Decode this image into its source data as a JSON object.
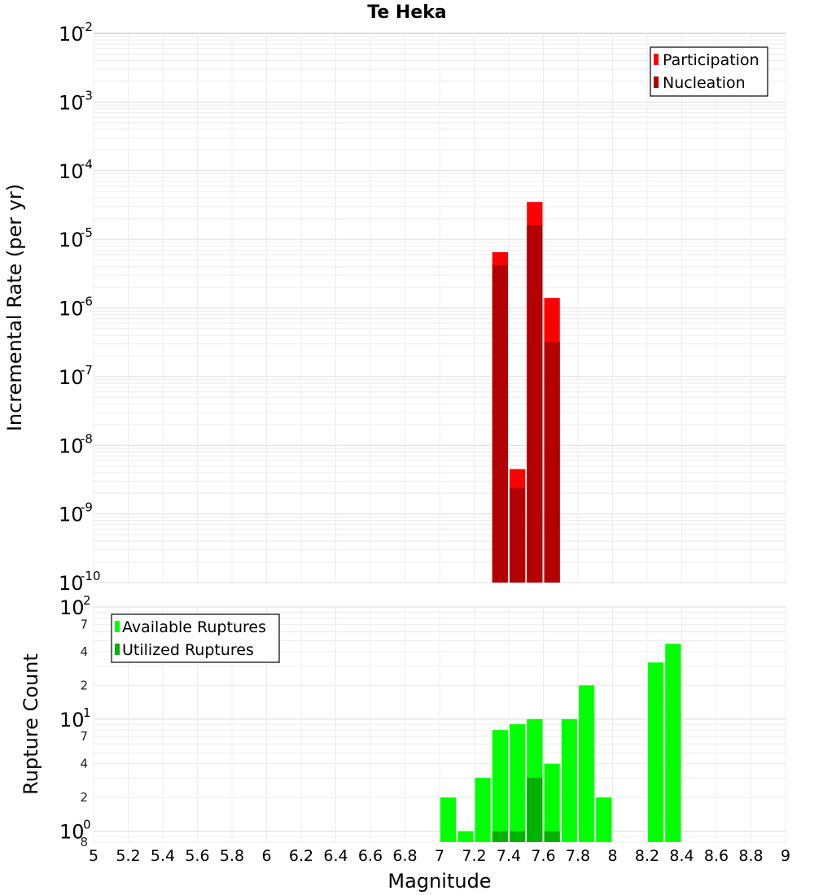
{
  "chart_data": [
    {
      "type": "bar",
      "title": "Te Heka",
      "xlabel": "",
      "ylabel": "Incremental Rate (per yr)",
      "yscale": "log",
      "xlim": [
        5,
        9
      ],
      "ylim": [
        1e-10,
        0.01
      ],
      "y_tick_exponents": [
        -2,
        -3,
        -4,
        -5,
        -6,
        -7,
        -8,
        -9,
        -10
      ],
      "y_tick_base": "10",
      "grid": true,
      "bar_width": 0.1,
      "legend_position": "top-right",
      "series": [
        {
          "name": "Participation",
          "color": "#ff0000",
          "x": [
            7.35,
            7.45,
            7.55,
            7.65
          ],
          "values": [
            6.5e-06,
            4.5e-09,
            3.5e-05,
            1.4e-06
          ]
        },
        {
          "name": "Nucleation",
          "color": "#b30000",
          "x": [
            7.35,
            7.45,
            7.55,
            7.65
          ],
          "values": [
            4.2e-06,
            2.4e-09,
            1.6e-05,
            3.2e-07
          ]
        }
      ]
    },
    {
      "type": "bar",
      "xlabel": "Magnitude",
      "ylabel": "Rupture Count",
      "yscale": "log",
      "xlim": [
        5,
        9
      ],
      "ylim": [
        0.8,
        100
      ],
      "x_ticks": [
        "5",
        "5.2",
        "5.4",
        "5.6",
        "5.8",
        "6",
        "6.2",
        "6.4",
        "6.6",
        "6.8",
        "7",
        "7.2",
        "7.4",
        "7.6",
        "7.8",
        "8",
        "8.2",
        "8.4",
        "8.6",
        "8.8",
        "9"
      ],
      "y_major_ticks": [
        {
          "base": "10",
          "exp": "2",
          "value": 100
        },
        {
          "base": "10",
          "exp": "1",
          "value": 10
        },
        {
          "base": "10",
          "exp": "0",
          "value": 1
        }
      ],
      "y_minor_ticks": [
        {
          "label": "7",
          "value": 70
        },
        {
          "label": "4",
          "value": 40
        },
        {
          "label": "2",
          "value": 20
        },
        {
          "label": "7",
          "value": 7
        },
        {
          "label": "4",
          "value": 4
        },
        {
          "label": "2",
          "value": 2
        },
        {
          "label": "8",
          "value": 0.8
        }
      ],
      "grid": true,
      "bar_width": 0.1,
      "legend_position": "top-left",
      "series": [
        {
          "name": "Available Ruptures",
          "color": "#00ff00",
          "x": [
            7.05,
            7.15,
            7.25,
            7.35,
            7.45,
            7.55,
            7.65,
            7.75,
            7.85,
            7.95,
            8.25,
            8.35
          ],
          "values": [
            2,
            1,
            3,
            8,
            9,
            10,
            4,
            10,
            20,
            2,
            32,
            47
          ]
        },
        {
          "name": "Utilized Ruptures",
          "color": "#00b300",
          "x": [
            7.35,
            7.45,
            7.55,
            7.65
          ],
          "values": [
            1,
            1,
            3,
            1
          ]
        }
      ]
    }
  ]
}
